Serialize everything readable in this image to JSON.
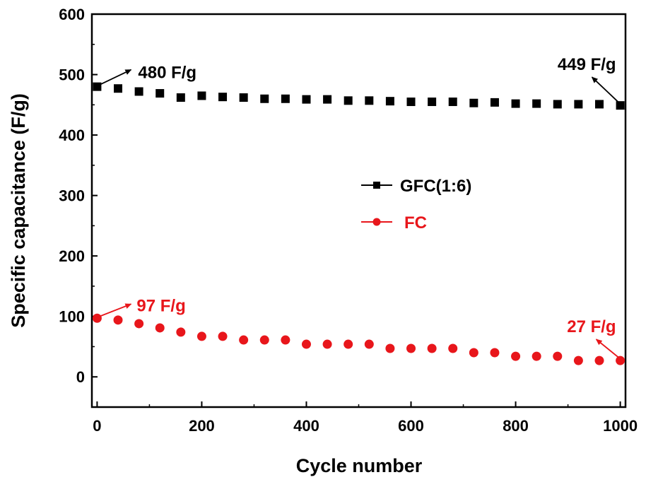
{
  "chart_data": {
    "type": "scatter",
    "title": "",
    "xlabel": "Cycle number",
    "ylabel": "Specific capacitance (F/g)",
    "xlim": [
      -10,
      1010
    ],
    "ylim": [
      -50,
      600
    ],
    "xticks": [
      0,
      200,
      400,
      600,
      800,
      1000
    ],
    "yticks": [
      0,
      100,
      200,
      300,
      400,
      500,
      600
    ],
    "legend_position": "center",
    "series": [
      {
        "name": "GFC(1:6)",
        "color": "#000000",
        "marker": "square",
        "x": [
          0,
          40,
          80,
          120,
          160,
          200,
          240,
          280,
          320,
          360,
          400,
          440,
          480,
          520,
          560,
          600,
          640,
          680,
          720,
          760,
          800,
          840,
          880,
          920,
          960,
          1000
        ],
        "y": [
          480,
          477,
          472,
          469,
          462,
          465,
          463,
          462,
          460,
          460,
          459,
          459,
          457,
          457,
          456,
          455,
          455,
          455,
          453,
          454,
          452,
          452,
          451,
          451,
          451,
          449
        ]
      },
      {
        "name": "FC",
        "color": "#e8161b",
        "marker": "circle",
        "x": [
          0,
          40,
          80,
          120,
          160,
          200,
          240,
          280,
          320,
          360,
          400,
          440,
          480,
          520,
          560,
          600,
          640,
          680,
          720,
          760,
          800,
          840,
          880,
          920,
          960,
          1000
        ],
        "y": [
          97,
          94,
          88,
          81,
          74,
          67,
          67,
          61,
          61,
          61,
          54,
          54,
          54,
          54,
          47,
          47,
          47,
          47,
          40,
          40,
          34,
          34,
          34,
          27,
          27,
          27
        ]
      }
    ],
    "annotations": [
      {
        "text": "480 F/g",
        "series": 0,
        "x": 0,
        "y": 480,
        "color": "#000000"
      },
      {
        "text": "449 F/g",
        "series": 0,
        "x": 1000,
        "y": 449,
        "color": "#000000"
      },
      {
        "text": "97 F/g",
        "series": 1,
        "x": 0,
        "y": 97,
        "color": "#e8161b"
      },
      {
        "text": "27 F/g",
        "series": 1,
        "x": 1000,
        "y": 27,
        "color": "#e8161b"
      }
    ]
  }
}
